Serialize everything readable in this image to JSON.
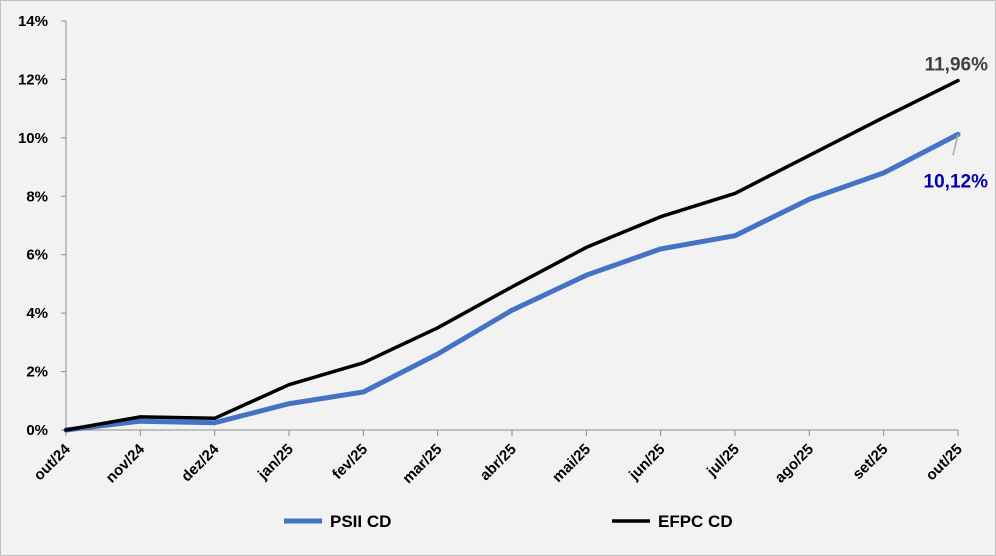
{
  "chart_data": {
    "type": "line",
    "title": "",
    "xlabel": "",
    "ylabel": "",
    "categories": [
      "out/24",
      "nov/24",
      "dez/24",
      "jan/25",
      "fev/25",
      "mar/25",
      "abr/25",
      "mai/25",
      "jun/25",
      "jul/25",
      "ago/25",
      "set/25",
      "out/25"
    ],
    "ylim": [
      0,
      14
    ],
    "yticks": [
      0,
      2,
      4,
      6,
      8,
      10,
      12,
      14
    ],
    "ytick_labels": [
      "0%",
      "2%",
      "4%",
      "6%",
      "8%",
      "10%",
      "12%",
      "14%"
    ],
    "grid": false,
    "legend_position": "bottom",
    "series": [
      {
        "name": "PSII CD",
        "color": "#4472c4",
        "values": [
          0.0,
          0.3,
          0.25,
          0.9,
          1.3,
          2.6,
          4.1,
          5.3,
          6.2,
          6.65,
          7.9,
          8.8,
          10.12
        ],
        "end_label": "10,12%",
        "end_label_color": "#0000b0"
      },
      {
        "name": "EFPC CD",
        "color": "#000000",
        "values": [
          0.0,
          0.45,
          0.4,
          1.55,
          2.3,
          3.5,
          4.9,
          6.25,
          7.3,
          8.1,
          9.4,
          10.7,
          11.96
        ],
        "end_label": "11,96%",
        "end_label_color": "#404040"
      }
    ]
  }
}
